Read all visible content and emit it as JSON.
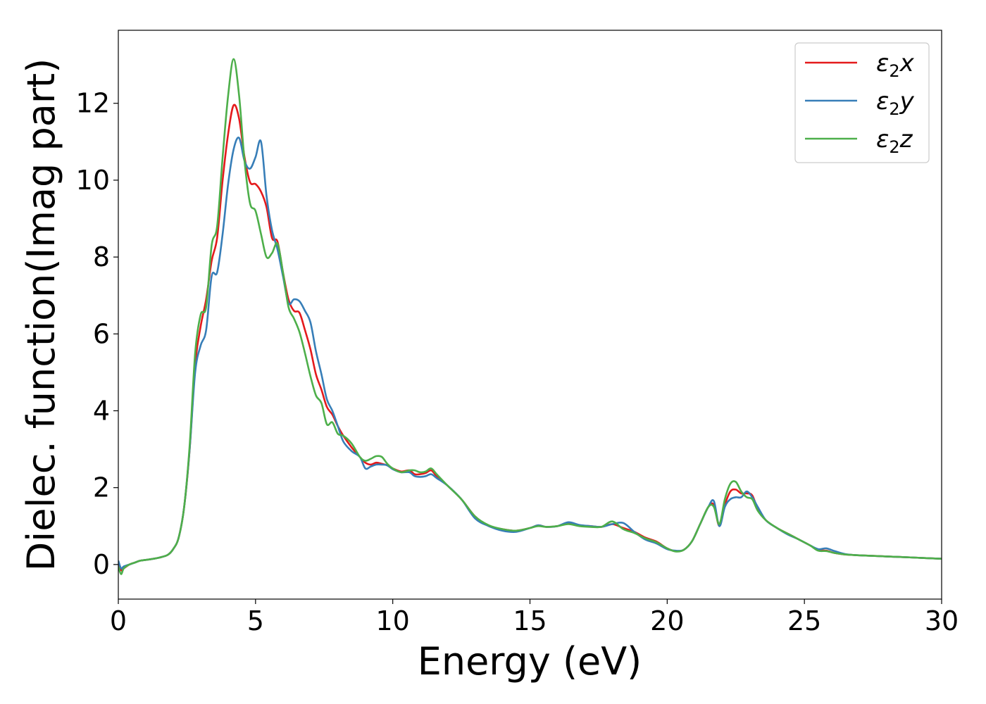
{
  "chart_data": {
    "type": "line",
    "title": "",
    "xlabel": "Energy (eV)",
    "ylabel": "Dielec. function(Imag part)",
    "xlim": [
      0,
      30
    ],
    "ylim": [
      -0.9,
      13.9
    ],
    "xticks": [
      0,
      5,
      10,
      15,
      20,
      25,
      30
    ],
    "yticks": [
      0,
      2,
      4,
      6,
      8,
      10,
      12
    ],
    "grid": false,
    "legend_position": "top-right",
    "series": [
      {
        "name": "ε2x",
        "label_base": "ε",
        "label_sub": "2",
        "label_suffix": "x",
        "color": "#e41a1c",
        "x": [
          0,
          0.1,
          0.2,
          0.4,
          0.6,
          0.8,
          1.0,
          1.2,
          1.5,
          1.8,
          2.0,
          2.2,
          2.4,
          2.6,
          2.8,
          3.0,
          3.2,
          3.4,
          3.6,
          3.8,
          4.0,
          4.2,
          4.4,
          4.6,
          4.8,
          5.0,
          5.2,
          5.4,
          5.6,
          5.8,
          6.0,
          6.2,
          6.4,
          6.6,
          6.8,
          7.0,
          7.2,
          7.4,
          7.6,
          7.8,
          8.0,
          8.2,
          8.5,
          8.8,
          9.0,
          9.2,
          9.4,
          9.6,
          9.8,
          10.0,
          10.3,
          10.6,
          10.8,
          11.0,
          11.2,
          11.4,
          11.6,
          12.0,
          12.5,
          13.0,
          13.5,
          14.0,
          14.5,
          15.0,
          15.3,
          15.6,
          16.0,
          16.4,
          16.8,
          17.2,
          17.6,
          18.0,
          18.4,
          18.8,
          19.2,
          19.6,
          20.0,
          20.3,
          20.6,
          20.9,
          21.2,
          21.5,
          21.7,
          21.9,
          22.1,
          22.3,
          22.5,
          22.7,
          22.9,
          23.1,
          23.3,
          23.6,
          24.0,
          24.4,
          24.8,
          25.2,
          25.5,
          25.8,
          26.1,
          26.5,
          27.0,
          28.0,
          29.0,
          30.0
        ],
        "y": [
          0.05,
          -0.15,
          -0.1,
          0.0,
          0.05,
          0.1,
          0.12,
          0.14,
          0.18,
          0.25,
          0.4,
          0.7,
          1.5,
          3.0,
          5.2,
          6.2,
          6.9,
          7.9,
          8.5,
          10.0,
          11.2,
          11.95,
          11.6,
          10.6,
          9.95,
          9.9,
          9.7,
          9.3,
          8.5,
          8.4,
          7.6,
          6.9,
          6.6,
          6.55,
          6.1,
          5.6,
          4.95,
          4.55,
          4.1,
          3.9,
          3.6,
          3.35,
          3.05,
          2.8,
          2.65,
          2.6,
          2.65,
          2.62,
          2.58,
          2.5,
          2.42,
          2.45,
          2.35,
          2.35,
          2.38,
          2.45,
          2.3,
          2.05,
          1.7,
          1.25,
          1.0,
          0.92,
          0.88,
          0.95,
          1.02,
          0.98,
          1.0,
          1.08,
          1.02,
          1.0,
          0.98,
          1.05,
          0.95,
          0.85,
          0.7,
          0.6,
          0.42,
          0.35,
          0.38,
          0.6,
          1.05,
          1.5,
          1.55,
          1.0,
          1.55,
          1.9,
          1.95,
          1.85,
          1.85,
          1.8,
          1.45,
          1.15,
          0.95,
          0.8,
          0.65,
          0.5,
          0.38,
          0.36,
          0.3,
          0.26,
          0.24,
          0.21,
          0.18,
          0.15
        ]
      },
      {
        "name": "ε2y",
        "label_base": "ε",
        "label_sub": "2",
        "label_suffix": "y",
        "color": "#377eb8",
        "x": [
          0,
          0.1,
          0.2,
          0.4,
          0.6,
          0.8,
          1.0,
          1.2,
          1.5,
          1.8,
          2.0,
          2.2,
          2.4,
          2.6,
          2.8,
          3.0,
          3.2,
          3.4,
          3.6,
          3.8,
          4.0,
          4.2,
          4.4,
          4.6,
          4.8,
          5.0,
          5.2,
          5.4,
          5.6,
          5.8,
          6.0,
          6.2,
          6.4,
          6.6,
          6.8,
          7.0,
          7.2,
          7.4,
          7.6,
          7.8,
          8.0,
          8.2,
          8.5,
          8.8,
          9.0,
          9.2,
          9.4,
          9.6,
          9.8,
          10.0,
          10.3,
          10.6,
          10.8,
          11.0,
          11.2,
          11.4,
          11.6,
          12.0,
          12.5,
          13.0,
          13.5,
          14.0,
          14.5,
          15.0,
          15.3,
          15.6,
          16.0,
          16.4,
          16.8,
          17.2,
          17.6,
          18.0,
          18.4,
          18.8,
          19.2,
          19.6,
          20.0,
          20.3,
          20.6,
          20.9,
          21.2,
          21.5,
          21.7,
          21.9,
          22.1,
          22.3,
          22.5,
          22.7,
          22.9,
          23.1,
          23.3,
          23.6,
          24.0,
          24.4,
          24.8,
          25.2,
          25.5,
          25.8,
          26.1,
          26.5,
          27.0,
          28.0,
          29.0,
          30.0
        ],
        "y": [
          0.1,
          -0.1,
          -0.05,
          0.0,
          0.05,
          0.1,
          0.12,
          0.14,
          0.18,
          0.25,
          0.4,
          0.7,
          1.5,
          3.0,
          5.0,
          5.7,
          6.1,
          7.5,
          7.6,
          8.6,
          9.9,
          10.8,
          11.1,
          10.5,
          10.3,
          10.6,
          11.0,
          9.6,
          8.7,
          8.2,
          7.5,
          6.8,
          6.9,
          6.85,
          6.6,
          6.3,
          5.55,
          4.95,
          4.3,
          4.0,
          3.6,
          3.2,
          2.95,
          2.8,
          2.5,
          2.55,
          2.6,
          2.6,
          2.58,
          2.48,
          2.4,
          2.4,
          2.3,
          2.28,
          2.3,
          2.35,
          2.25,
          2.05,
          1.7,
          1.2,
          1.0,
          0.88,
          0.85,
          0.95,
          1.02,
          0.98,
          1.0,
          1.1,
          1.03,
          1.0,
          0.98,
          1.05,
          1.08,
          0.85,
          0.65,
          0.55,
          0.4,
          0.36,
          0.38,
          0.6,
          1.05,
          1.5,
          1.65,
          1.0,
          1.5,
          1.7,
          1.75,
          1.75,
          1.9,
          1.75,
          1.5,
          1.15,
          0.95,
          0.78,
          0.65,
          0.5,
          0.4,
          0.42,
          0.35,
          0.27,
          0.24,
          0.21,
          0.18,
          0.15
        ]
      },
      {
        "name": "ε2z",
        "label_base": "ε",
        "label_sub": "2",
        "label_suffix": "z",
        "color": "#4daf4a",
        "x": [
          0,
          0.1,
          0.2,
          0.4,
          0.6,
          0.8,
          1.0,
          1.2,
          1.5,
          1.8,
          2.0,
          2.2,
          2.4,
          2.6,
          2.8,
          3.0,
          3.2,
          3.4,
          3.6,
          3.8,
          4.0,
          4.2,
          4.4,
          4.6,
          4.8,
          5.0,
          5.2,
          5.4,
          5.6,
          5.8,
          6.0,
          6.2,
          6.4,
          6.6,
          6.8,
          7.0,
          7.2,
          7.4,
          7.6,
          7.8,
          8.0,
          8.2,
          8.5,
          8.8,
          9.0,
          9.2,
          9.4,
          9.6,
          9.8,
          10.0,
          10.3,
          10.6,
          10.8,
          11.0,
          11.2,
          11.4,
          11.6,
          12.0,
          12.5,
          13.0,
          13.5,
          14.0,
          14.5,
          15.0,
          15.3,
          15.6,
          16.0,
          16.4,
          16.8,
          17.2,
          17.6,
          18.0,
          18.4,
          18.8,
          19.2,
          19.6,
          20.0,
          20.3,
          20.6,
          20.9,
          21.2,
          21.5,
          21.7,
          21.9,
          22.1,
          22.3,
          22.5,
          22.7,
          22.9,
          23.1,
          23.3,
          23.6,
          24.0,
          24.4,
          24.8,
          25.2,
          25.5,
          25.8,
          26.1,
          26.5,
          27.0,
          28.0,
          29.0,
          30.0
        ],
        "y": [
          -0.05,
          -0.25,
          -0.1,
          0.0,
          0.05,
          0.1,
          0.12,
          0.14,
          0.18,
          0.25,
          0.4,
          0.7,
          1.5,
          3.1,
          5.5,
          6.5,
          6.7,
          8.3,
          8.8,
          10.6,
          12.2,
          13.15,
          12.2,
          10.5,
          9.4,
          9.2,
          8.6,
          8.0,
          8.1,
          8.35,
          7.6,
          6.7,
          6.4,
          6.05,
          5.5,
          4.9,
          4.4,
          4.2,
          3.65,
          3.7,
          3.4,
          3.35,
          3.15,
          2.8,
          2.7,
          2.75,
          2.82,
          2.8,
          2.62,
          2.5,
          2.4,
          2.45,
          2.45,
          2.4,
          2.42,
          2.5,
          2.35,
          2.05,
          1.7,
          1.25,
          1.02,
          0.92,
          0.88,
          0.95,
          1.0,
          0.98,
          1.0,
          1.05,
          1.0,
          0.98,
          0.98,
          1.12,
          0.92,
          0.82,
          0.68,
          0.58,
          0.42,
          0.34,
          0.38,
          0.6,
          1.05,
          1.5,
          1.5,
          1.05,
          1.7,
          2.1,
          2.15,
          1.9,
          1.75,
          1.7,
          1.4,
          1.15,
          0.95,
          0.8,
          0.65,
          0.5,
          0.36,
          0.35,
          0.3,
          0.26,
          0.24,
          0.21,
          0.18,
          0.15
        ]
      }
    ]
  }
}
